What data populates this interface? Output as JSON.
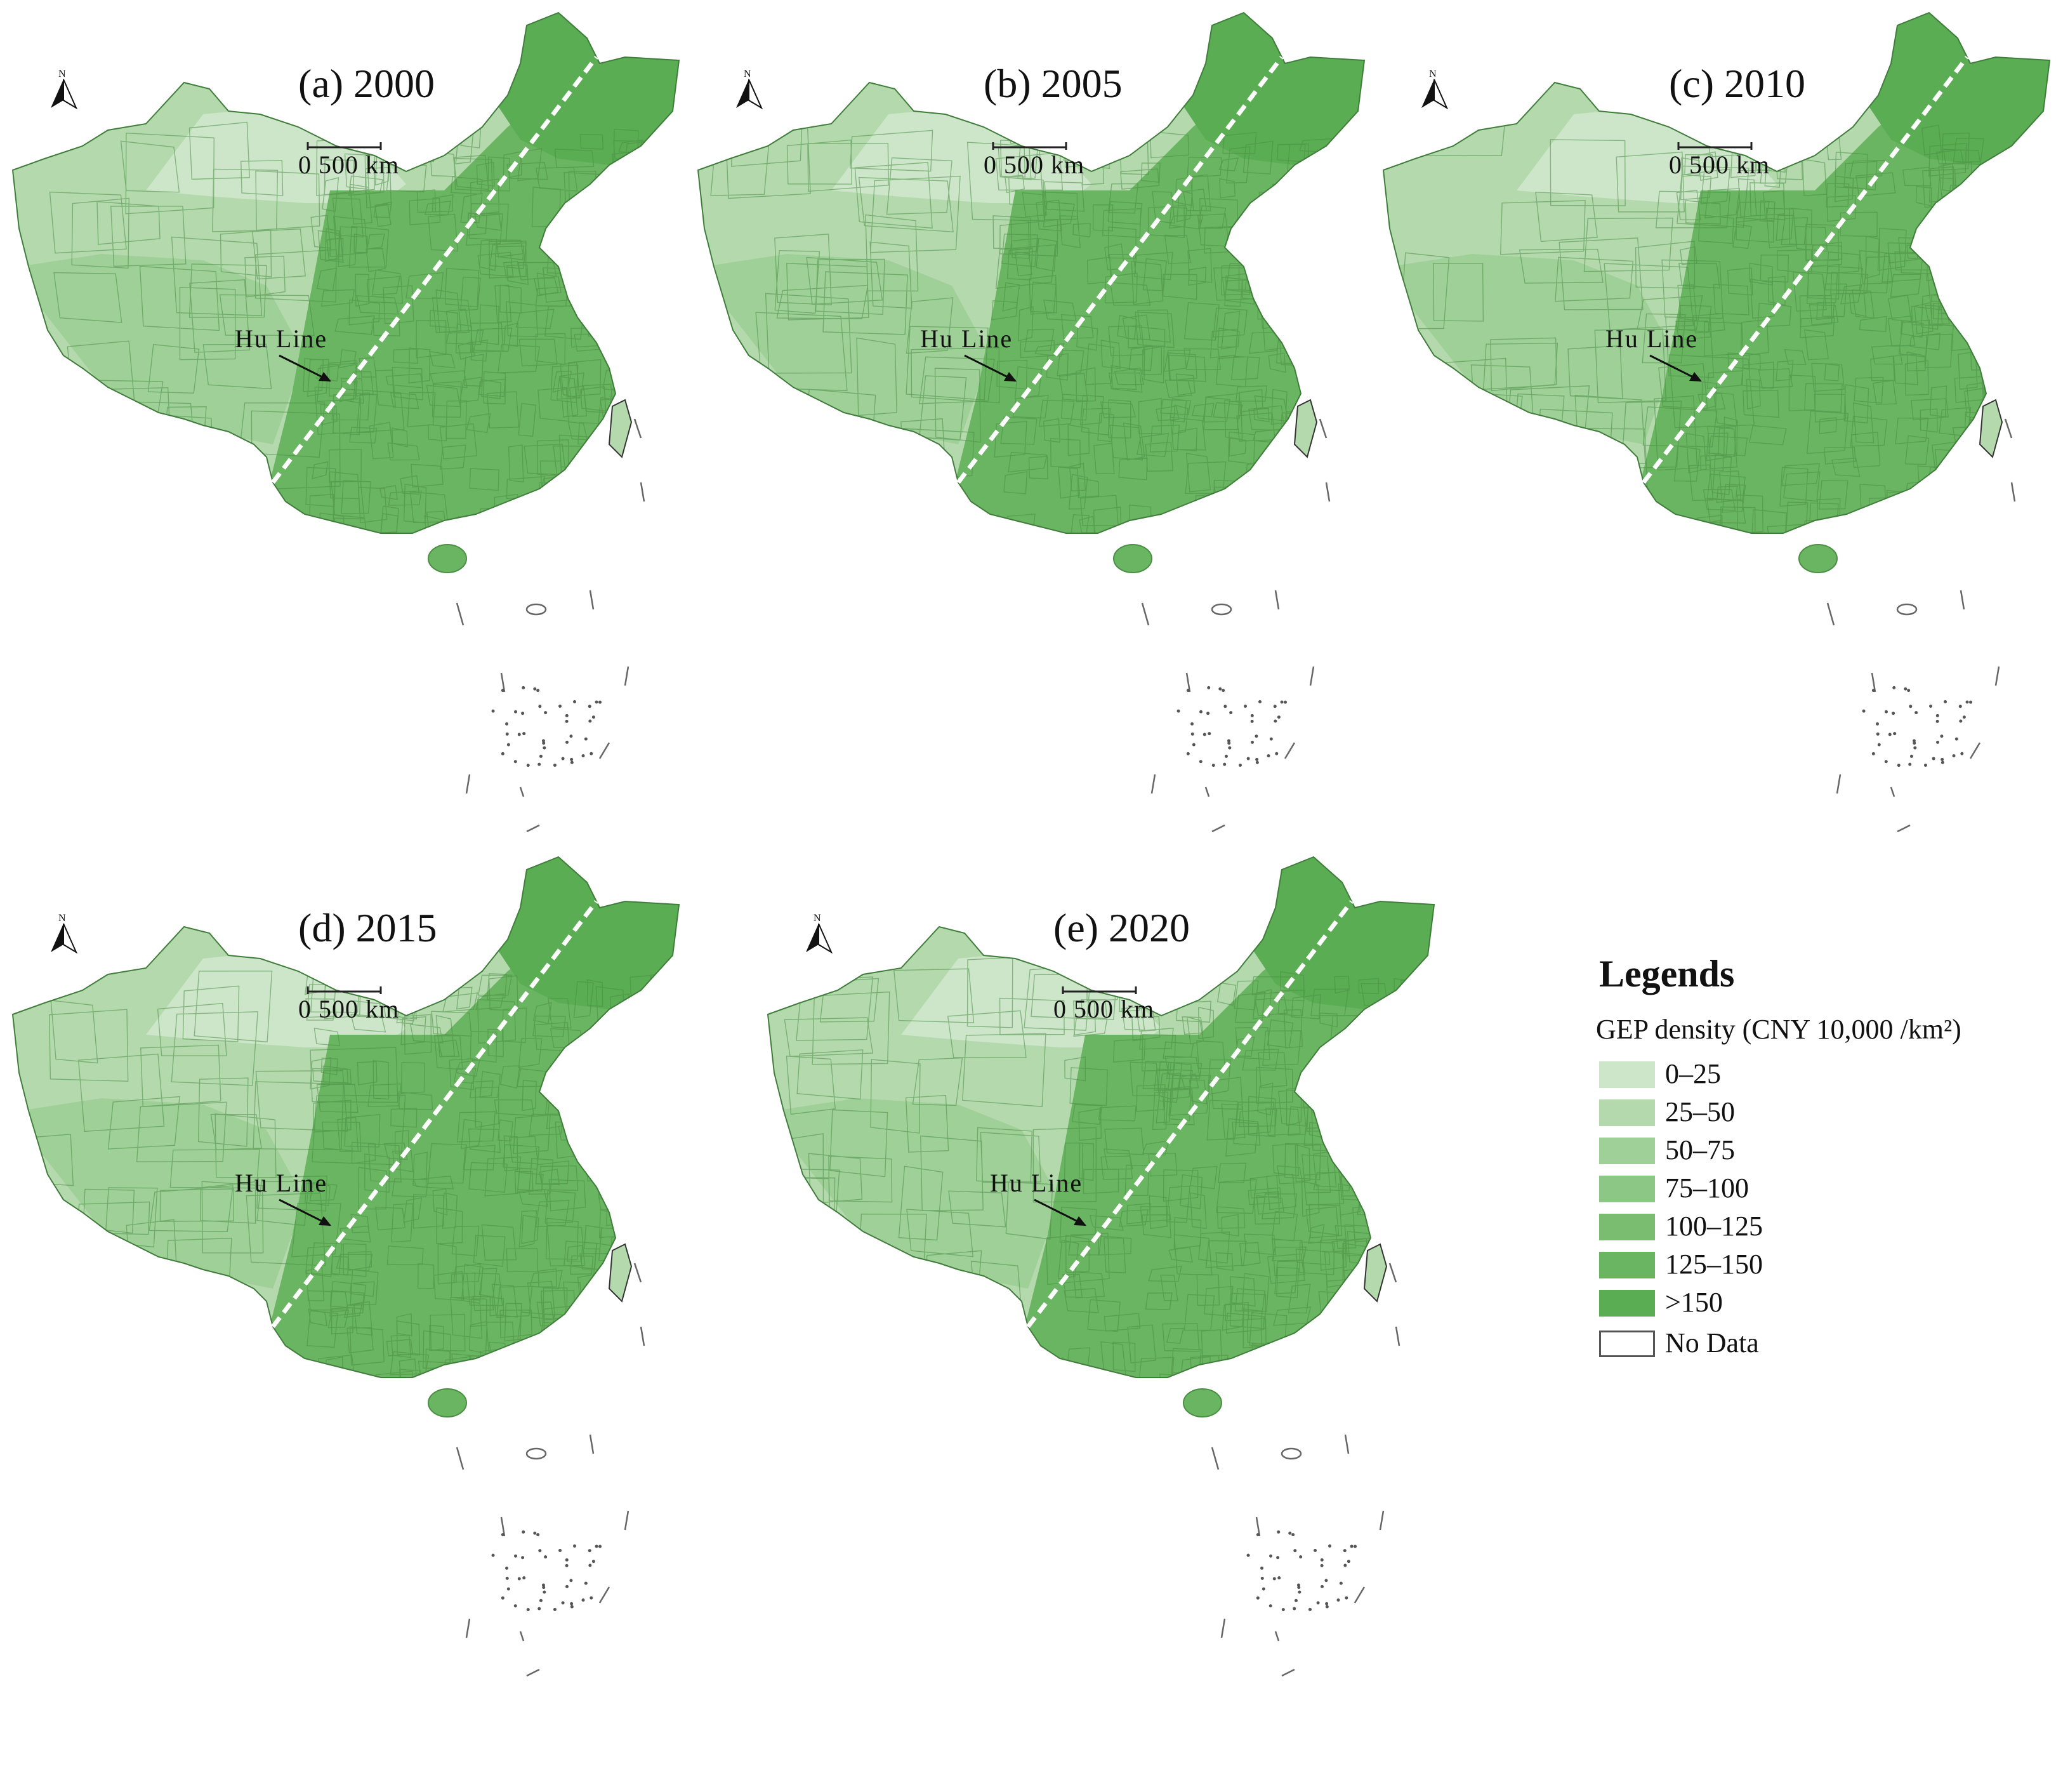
{
  "panels": [
    {
      "id": "a",
      "title": "(a) 2000"
    },
    {
      "id": "b",
      "title": "(b) 2005"
    },
    {
      "id": "c",
      "title": "(c) 2010"
    },
    {
      "id": "d",
      "title": "(d) 2015"
    },
    {
      "id": "e",
      "title": "(e) 2020"
    }
  ],
  "scale_bar": {
    "label": "0    500 km"
  },
  "north_arrow": {
    "label": "N"
  },
  "annotation": {
    "hu_line": "Hu Line"
  },
  "legend": {
    "title": "Legends",
    "subtitle": "GEP density (CNY 10,000 /km²)",
    "items": [
      {
        "label": "0–25",
        "color": "#cde5c9"
      },
      {
        "label": "25–50",
        "color": "#b4d9ad"
      },
      {
        "label": "50–75",
        "color": "#9fd098"
      },
      {
        "label": "75–100",
        "color": "#8dc785"
      },
      {
        "label": "100–125",
        "color": "#7abd71"
      },
      {
        "label": "125–150",
        "color": "#6ab561"
      },
      {
        "label": ">150",
        "color": "#5aad52"
      },
      {
        "label": "No Data",
        "color": "#ffffff"
      }
    ]
  },
  "colors": {
    "west_light": "#b4d9ad",
    "desert": "#cde5c9",
    "plateau": "#9fd098",
    "east": "#6ab561",
    "northeast": "#5aad52",
    "boundary": "#4a8f44"
  }
}
